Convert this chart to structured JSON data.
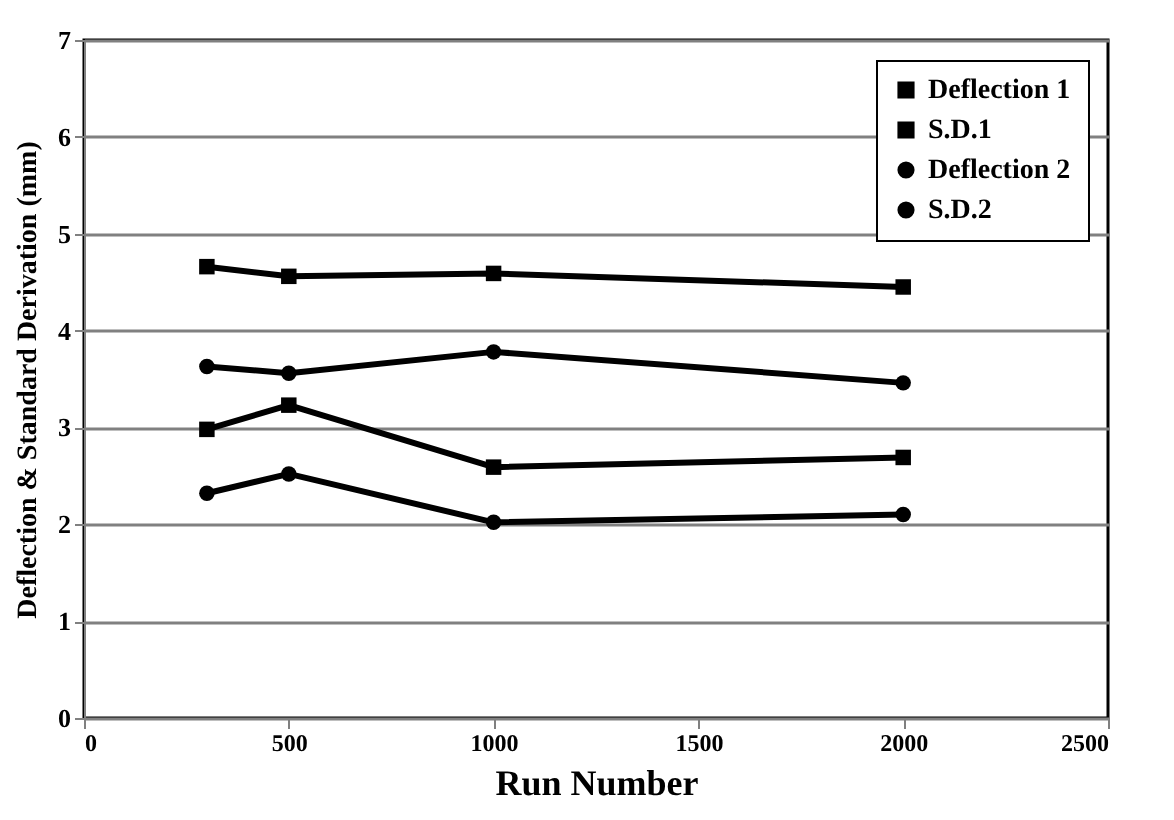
{
  "chart_data": {
    "type": "line",
    "xlabel": "Run Number",
    "ylabel": "Deflection & Standard Derivation (mm)",
    "x": [
      300,
      500,
      1000,
      2000
    ],
    "series": [
      {
        "name": "Deflection 1",
        "color": "#000000",
        "marker": "square",
        "values": [
          4.66,
          4.56,
          4.59,
          4.45
        ]
      },
      {
        "name": "S.D.1",
        "color": "#000000",
        "marker": "square",
        "values": [
          2.98,
          3.23,
          2.59,
          2.69
        ]
      },
      {
        "name": "Deflection 2",
        "color": "#000000",
        "marker": "circle",
        "values": [
          3.63,
          3.56,
          3.78,
          3.46
        ]
      },
      {
        "name": "S.D.2",
        "color": "#000000",
        "marker": "circle",
        "values": [
          2.32,
          2.52,
          2.02,
          2.1
        ]
      }
    ],
    "xlim": [
      0,
      2500
    ],
    "xticks": [
      0,
      500,
      1000,
      1500,
      2000,
      2500
    ],
    "ylim": [
      0,
      7
    ],
    "yticks": [
      0,
      1,
      2,
      3,
      4,
      5,
      6,
      7
    ],
    "grid": "y",
    "legend": "top right",
    "line_style": "solid"
  }
}
